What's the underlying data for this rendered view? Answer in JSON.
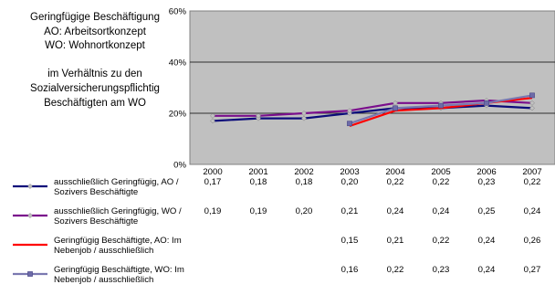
{
  "side_title": [
    "Geringfügige Beschäftigung",
    "AO: Arbeitsortkonzept",
    "WO: Wohnortkonzept",
    "",
    "im Verhältnis zu den",
    "Sozialversicherungspflichtig",
    "Beschäftigten am WO"
  ],
  "chart_data": {
    "type": "line",
    "x": [
      "2000",
      "2001",
      "2002",
      "2003",
      "2004",
      "2005",
      "2006",
      "2007"
    ],
    "y_ticks": [
      "0%",
      "20%",
      "40%",
      "60%"
    ],
    "ylim": [
      0,
      0.6
    ],
    "grid": true,
    "legend_placement": "data-table",
    "series": [
      {
        "name": "ausschließlich Geringfügig, AO / Sozivers Beschäftigte",
        "color": "#0b0b7a",
        "marker": "diamond",
        "marker_color": "#c0c0c0",
        "values": [
          0.17,
          0.18,
          0.18,
          0.2,
          0.22,
          0.22,
          0.23,
          0.22
        ],
        "labels": [
          "0,17",
          "0,18",
          "0,18",
          "0,20",
          "0,22",
          "0,22",
          "0,23",
          "0,22"
        ]
      },
      {
        "name": "ausschließlich Geringfügig, WO / Sozivers Beschäftigte",
        "color": "#7a0e8c",
        "marker": "diamond",
        "marker_color": "#c0c0c0",
        "values": [
          0.19,
          0.19,
          0.2,
          0.21,
          0.24,
          0.24,
          0.25,
          0.24
        ],
        "labels": [
          "0,19",
          "0,19",
          "0,20",
          "0,21",
          "0,24",
          "0,24",
          "0,25",
          "0,24"
        ]
      },
      {
        "name": "Geringfügig Beschäftigte, AO: Im Nebenjob / ausschließlich",
        "color": "#ff0000",
        "marker": "none",
        "marker_color": "#ff0000",
        "values": [
          null,
          null,
          null,
          0.15,
          0.21,
          0.22,
          0.24,
          0.26
        ],
        "labels": [
          "",
          "",
          "",
          "0,15",
          "0,21",
          "0,22",
          "0,24",
          "0,26"
        ]
      },
      {
        "name": "Geringfügig Beschäftigte, WO: Im Nebenjob / ausschließlich",
        "color": "#7a78b0",
        "marker": "square",
        "marker_color": "#6d6ba8",
        "values": [
          null,
          null,
          null,
          0.16,
          0.22,
          0.23,
          0.24,
          0.27
        ],
        "labels": [
          "",
          "",
          "",
          "0,16",
          "0,22",
          "0,23",
          "0,24",
          "0,27"
        ]
      }
    ]
  }
}
